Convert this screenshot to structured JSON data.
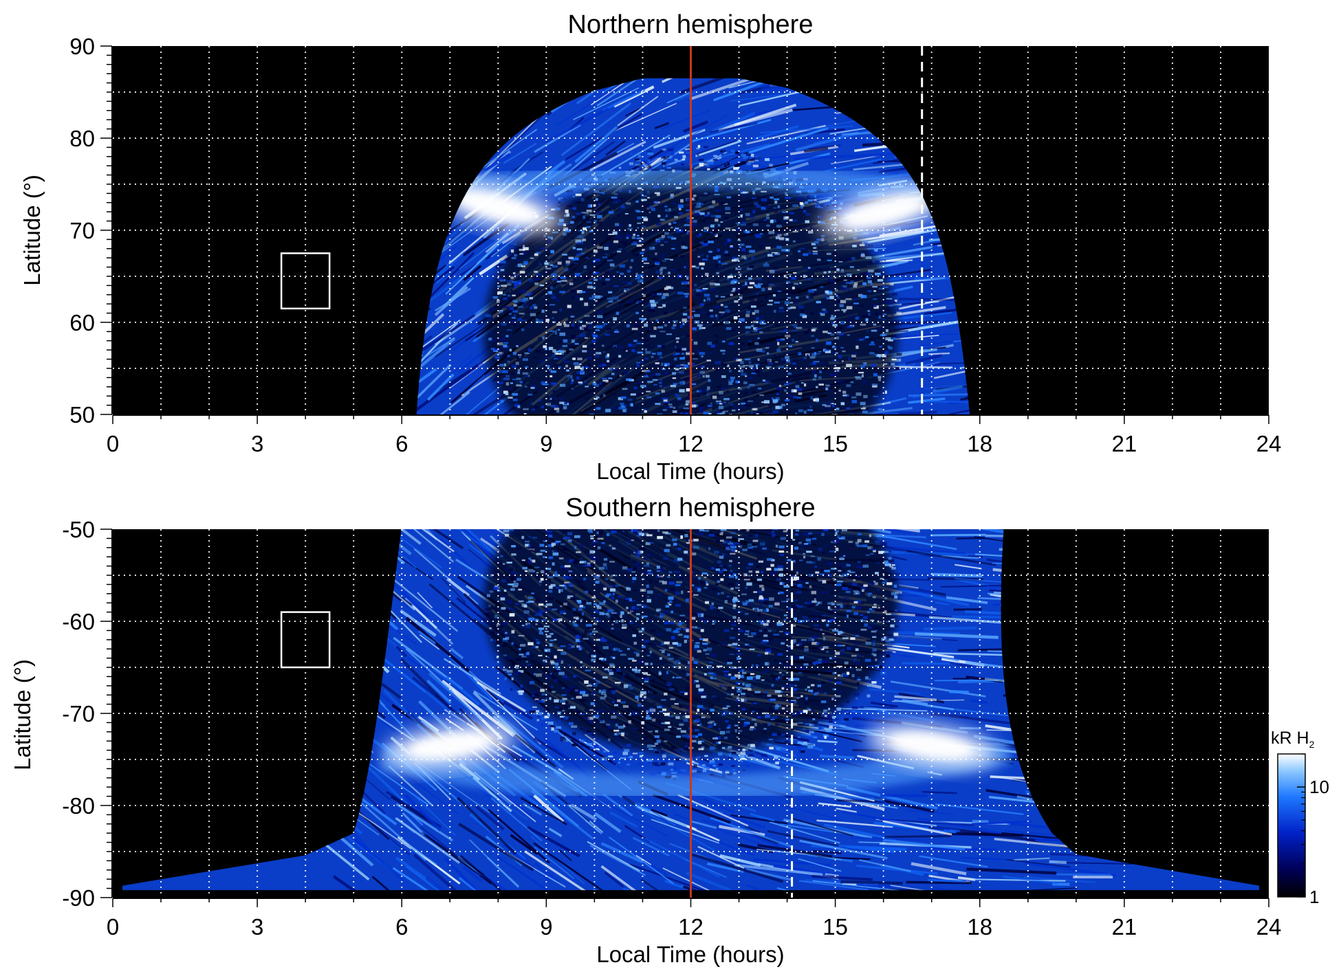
{
  "chart_data": [
    {
      "type": "heatmap",
      "title": "Northern hemisphere",
      "xlabel": "Local Time (hours)",
      "ylabel": "Latitude (°)",
      "xlim": [
        0,
        24
      ],
      "ylim": [
        50,
        90
      ],
      "xticks": [
        0,
        3,
        6,
        9,
        12,
        15,
        18,
        21,
        24
      ],
      "xtick_labels": [
        "0",
        "3",
        "6",
        "9",
        "12",
        "15",
        "18",
        "21",
        "24"
      ],
      "yticks": [
        50,
        60,
        70,
        80,
        90
      ],
      "ytick_labels": [
        "50",
        "60",
        "70",
        "80",
        "90"
      ],
      "grid": true,
      "grid_x_step": 1,
      "grid_y_step": 5,
      "noon_line_lt": 12,
      "noon_line_color": "#c8391c",
      "dashed_line_lt": 16.8,
      "box": {
        "lt": [
          3.5,
          4.5
        ],
        "lat": [
          61.5,
          67.5
        ]
      },
      "emission": {
        "lt_edge_bottom": [
          6.3,
          17.8
        ],
        "lt_edge_top": [
          10,
          14
        ],
        "lat_top": 86.5,
        "main_oval_lat": 72.5,
        "bright_spots": [
          {
            "lt": 8.0,
            "lat": 72.5,
            "kR": 18
          },
          {
            "lt": 16.0,
            "lat": 72.0,
            "kR": 18
          }
        ]
      }
    },
    {
      "type": "heatmap",
      "title": "Southern hemisphere",
      "xlabel": "Local Time (hours)",
      "ylabel": "Latitude (°)",
      "xlim": [
        0,
        24
      ],
      "ylim": [
        -90,
        -50
      ],
      "xticks": [
        0,
        3,
        6,
        9,
        12,
        15,
        18,
        21,
        24
      ],
      "xtick_labels": [
        "0",
        "3",
        "6",
        "9",
        "12",
        "15",
        "18",
        "21",
        "24"
      ],
      "yticks": [
        -90,
        -80,
        -70,
        -60,
        -50
      ],
      "ytick_labels": [
        "-90",
        "-80",
        "-70",
        "-60",
        "-50"
      ],
      "grid": true,
      "grid_x_step": 1,
      "grid_y_step": 5,
      "noon_line_lt": 12,
      "noon_line_color": "#c8391c",
      "dashed_line_lt": 14.1,
      "box": {
        "lt": [
          3.5,
          4.5
        ],
        "lat": [
          -65,
          -59
        ]
      },
      "emission": {
        "lt_edge_top": [
          6,
          18.5
        ],
        "lt_edge_bottom": [
          1.5,
          23.5
        ],
        "main_oval_lat": -74,
        "bright_spots": [
          {
            "lt": 7.0,
            "lat": -73.5,
            "kR": 18
          },
          {
            "lt": 17.0,
            "lat": -73.5,
            "kR": 16
          }
        ]
      }
    }
  ],
  "colorbar": {
    "label": "kR H",
    "label_subscript": "2",
    "scale": "log",
    "range": [
      1,
      20
    ],
    "tick_labels": [
      "1",
      "10"
    ],
    "tick_values": [
      1,
      10
    ],
    "colors": [
      "#000000",
      "#00005a",
      "#0022c8",
      "#1e78ff",
      "#8cc8ff",
      "#ffffff"
    ]
  },
  "colors": {
    "background": "#000000",
    "grid": "#ffffff",
    "box": "#ffffff",
    "dashed_line": "#ffffff"
  }
}
